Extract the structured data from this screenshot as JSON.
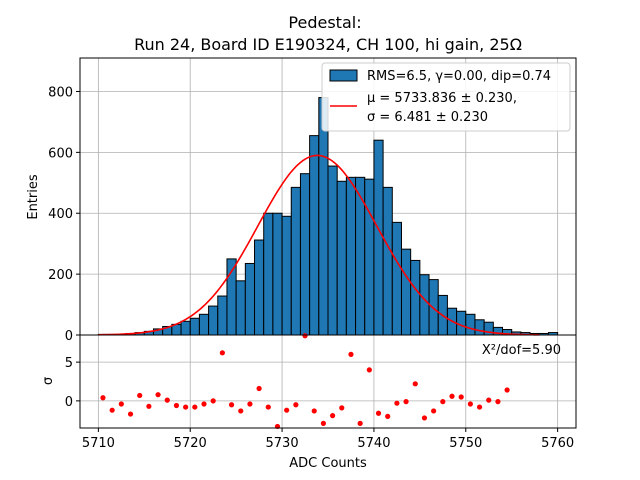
{
  "chart_data": [
    {
      "type": "bar",
      "panel": "histogram",
      "title": "Pedestal:",
      "subtitle": "Run 24, Board ID E190324, CH 100, hi gain, 25Ω",
      "xlabel": "ADC Counts",
      "ylabel": "Entries",
      "xlim": [
        5708,
        5762
      ],
      "ylim": [
        0,
        910
      ],
      "grid": true,
      "bin_width": 1,
      "bin_edges_start": 5710,
      "values": [
        2,
        2,
        2,
        5,
        8,
        12,
        20,
        28,
        35,
        45,
        55,
        68,
        95,
        128,
        250,
        178,
        235,
        312,
        400,
        400,
        390,
        485,
        530,
        655,
        780,
        555,
        505,
        518,
        518,
        512,
        640,
        485,
        370,
        282,
        245,
        198,
        182,
        130,
        88,
        78,
        68,
        50,
        42,
        25,
        18,
        10,
        8,
        5,
        5,
        8
      ],
      "yticks": [
        0,
        200,
        400,
        600,
        800
      ],
      "legend_position": "top-right",
      "legend": [
        {
          "label": "RMS=6.5, γ=0.00, dip=0.74",
          "kind": "patch",
          "color": "#1f77b4"
        },
        {
          "label_line1": "μ = 5733.836 ± 0.230,",
          "label_line2": "σ = 6.481 ± 0.230",
          "kind": "line",
          "color": "#ff0000"
        }
      ],
      "fit": {
        "type": "gaussian",
        "mu": 5733.836,
        "sigma": 6.481,
        "amplitude": 590,
        "x_range": [
          5710,
          5758
        ],
        "color": "#ff0000"
      }
    },
    {
      "type": "scatter",
      "panel": "residuals",
      "xlabel": "ADC Counts",
      "ylabel": "σ",
      "xlim": [
        5708,
        5762
      ],
      "ylim": [
        -3.5,
        8.5
      ],
      "grid": true,
      "annotation": "X²/dof=5.90",
      "color": "#ff0000",
      "x": [
        5710.5,
        5711.5,
        5712.5,
        5713.5,
        5714.5,
        5715.5,
        5716.5,
        5717.5,
        5718.5,
        5719.5,
        5720.5,
        5721.5,
        5722.5,
        5723.5,
        5724.5,
        5725.5,
        5726.5,
        5727.5,
        5728.5,
        5729.5,
        5730.5,
        5731.5,
        5732.5,
        5733.5,
        5734.5,
        5735.5,
        5736.5,
        5737.5,
        5738.5,
        5739.5,
        5740.5,
        5741.5,
        5742.5,
        5743.5,
        5744.5,
        5745.5,
        5746.5,
        5747.5,
        5748.5,
        5749.5,
        5750.5,
        5751.5,
        5752.5,
        5753.5,
        5754.5
      ],
      "y": [
        0.4,
        -1.2,
        -0.4,
        -1.7,
        0.7,
        -0.7,
        0.8,
        0.1,
        -0.6,
        -0.8,
        -0.8,
        -0.4,
        0.0,
        6.2,
        -0.5,
        -1.3,
        -0.4,
        1.6,
        -0.8,
        -3.3,
        -1.2,
        -0.5,
        8.4,
        -1.3,
        -2.9,
        -1.9,
        -0.9,
        6.0,
        -2.9,
        4.0,
        -1.6,
        -2.0,
        -0.3,
        -0.1,
        2.2,
        -2.2,
        -1.3,
        -0.1,
        0.6,
        0.5,
        -0.4,
        -0.8,
        0.1,
        -0.1,
        1.4
      ],
      "xticks": [
        5710,
        5720,
        5730,
        5740,
        5750,
        5760
      ],
      "yticks": [
        0,
        5
      ]
    }
  ]
}
